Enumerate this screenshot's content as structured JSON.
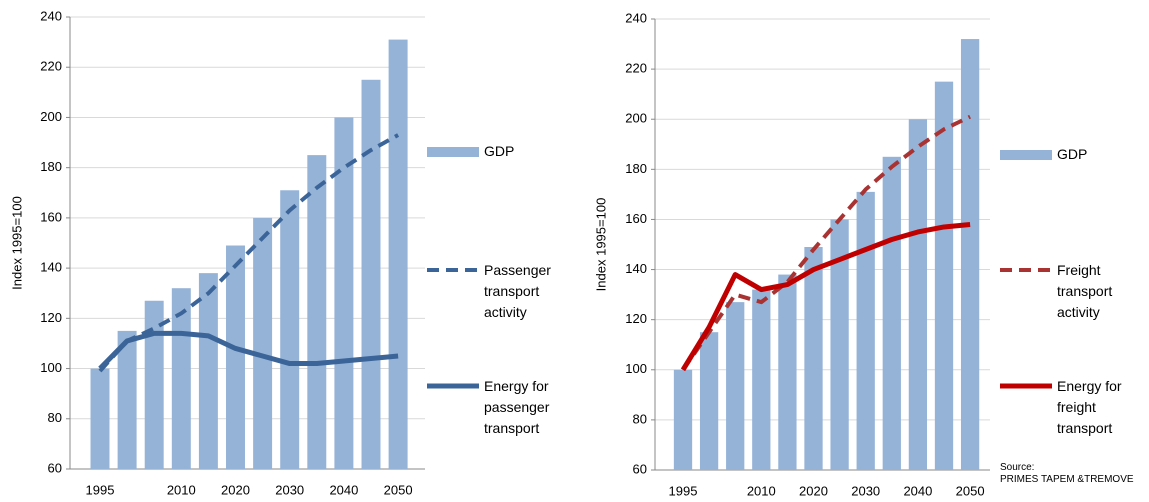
{
  "chart_data": [
    {
      "type": "bar_line",
      "ylabel": "Index 1995=100",
      "categories": [
        "1995",
        null,
        null,
        "2010",
        null,
        "2020",
        null,
        "2030",
        null,
        "2040",
        null,
        "2050"
      ],
      "ylim": [
        60,
        240
      ],
      "yticks": [
        60,
        80,
        100,
        120,
        140,
        160,
        180,
        200,
        220,
        240
      ],
      "series": [
        {
          "name": "GDP",
          "kind": "bar",
          "color": "#95b3d7",
          "values": [
            100,
            115,
            127,
            132,
            138,
            149,
            160,
            171,
            185,
            200,
            215,
            231
          ]
        },
        {
          "name": "Passenger transport activity",
          "kind": "line",
          "dash": true,
          "color": "#3b6498",
          "values": [
            99,
            111,
            116,
            122,
            130,
            141,
            152,
            163,
            172,
            180,
            187,
            193
          ]
        },
        {
          "name": "Energy for passenger transport",
          "kind": "line",
          "dash": false,
          "color": "#3b6498",
          "values": [
            100,
            111,
            114,
            114,
            113,
            108,
            105,
            102,
            102,
            103,
            104,
            105
          ]
        }
      ]
    },
    {
      "type": "bar_line",
      "ylabel": "Index 1995=100",
      "categories": [
        "1995",
        null,
        null,
        "2010",
        null,
        "2020",
        null,
        "2030",
        null,
        "2040",
        null,
        "2050"
      ],
      "ylim": [
        60,
        240
      ],
      "yticks": [
        60,
        80,
        100,
        120,
        140,
        160,
        180,
        200,
        220,
        240
      ],
      "series": [
        {
          "name": "GDP",
          "kind": "bar",
          "color": "#95b3d7",
          "values": [
            100,
            115,
            127,
            132,
            138,
            149,
            160,
            171,
            185,
            200,
            215,
            232
          ]
        },
        {
          "name": "Freight transport activity",
          "kind": "line",
          "dash": true,
          "color": "#a93232",
          "values": [
            100,
            115,
            130,
            127,
            135,
            148,
            160,
            172,
            181,
            189,
            196,
            201
          ]
        },
        {
          "name": "Energy for freight transport",
          "kind": "line",
          "dash": false,
          "color": "#c00000",
          "values": [
            100,
            117,
            138,
            132,
            134,
            140,
            144,
            148,
            152,
            155,
            157,
            158
          ]
        }
      ],
      "source_label": "Source:",
      "source": "PRIMES TAPEM &TREMOVE"
    }
  ]
}
